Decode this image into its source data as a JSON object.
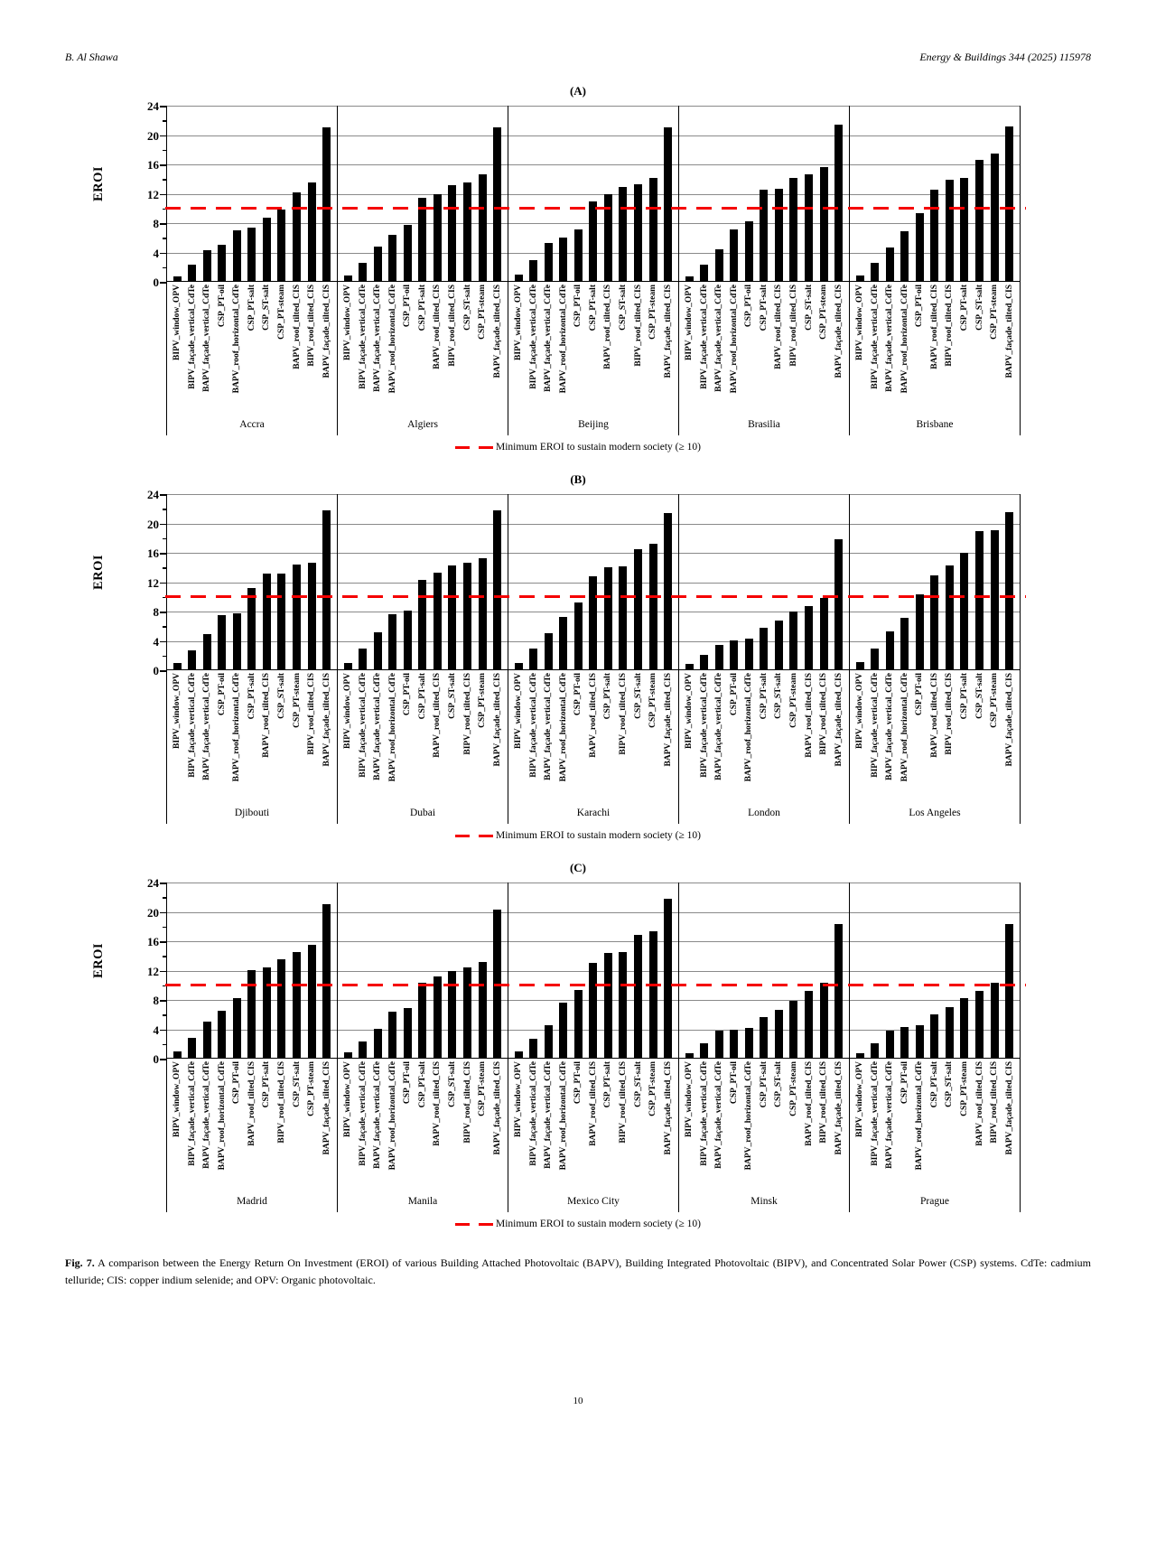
{
  "header": {
    "author": "B. Al Shawa",
    "journal": "Energy & Buildings 344 (2025) 115978"
  },
  "page_number": "10",
  "legend": {
    "label": "Minimum EROI to sustain modern society (≥ 10)",
    "line_color": "#f50000"
  },
  "caption": {
    "label": "Fig. 7.",
    "text": "A comparison between the Energy Return On Investment (EROI) of various Building Attached Photovoltaic (BAPV), Building Integrated Photovoltaic (BIPV), and Concentrated Solar Power (CSP) systems. CdTe: cadmium telluride; CIS: copper indium selenide; and OPV: Organic photovoltaic."
  },
  "chart_data": [
    {
      "type": "bar",
      "panel": "(A)",
      "ylabel": "EROI",
      "ylim": [
        0,
        24
      ],
      "yticks": [
        0,
        4,
        8,
        12,
        16,
        20,
        24
      ],
      "grid": true,
      "threshold": 10,
      "bar_color": "#000000",
      "groups": [
        {
          "city": "Accra",
          "bars": [
            {
              "label": "BIPV_window_OPV",
              "value": 0.8
            },
            {
              "label": "BIPV_façade_vertical_CdTe",
              "value": 2.3
            },
            {
              "label": "BAPV_façade_vertical_CdTe",
              "value": 4.3
            },
            {
              "label": "CSP_PT-oil",
              "value": 5.1
            },
            {
              "label": "BAPV_roof_horizontal_CdTe",
              "value": 7.0
            },
            {
              "label": "CSP_PT-salt",
              "value": 7.4
            },
            {
              "label": "CSP_ST-salt",
              "value": 8.8
            },
            {
              "label": "CSP_PT-steam",
              "value": 9.9
            },
            {
              "label": "BAPV_roof_tilted_CIS",
              "value": 12.2
            },
            {
              "label": "BIPV_roof_tilted_CIS",
              "value": 13.5
            },
            {
              "label": "BAPV_façade_tilted_CIS",
              "value": 21.0
            }
          ]
        },
        {
          "city": "Algiers",
          "bars": [
            {
              "label": "BIPV_window_OPV",
              "value": 0.9
            },
            {
              "label": "BIPV_façade_vertical_CdTe",
              "value": 2.6
            },
            {
              "label": "BAPV_façade_vertical_CdTe",
              "value": 4.8
            },
            {
              "label": "BAPV_roof_horizontal_CdTe",
              "value": 6.4
            },
            {
              "label": "CSP_PT-oil",
              "value": 7.7
            },
            {
              "label": "CSP_PT-salt",
              "value": 11.4
            },
            {
              "label": "BAPV_roof_tilted_CIS",
              "value": 12.0
            },
            {
              "label": "BIPV_roof_tilted_CIS",
              "value": 13.2
            },
            {
              "label": "CSP_ST-salt",
              "value": 13.6
            },
            {
              "label": "CSP_PT-steam",
              "value": 14.7
            },
            {
              "label": "BAPV_façade_tilted_CIS",
              "value": 21.0
            }
          ]
        },
        {
          "city": "Beijing",
          "bars": [
            {
              "label": "BIPV_window_OPV",
              "value": 1.0
            },
            {
              "label": "BIPV_façade_vertical_CdTe",
              "value": 2.9
            },
            {
              "label": "BAPV_façade_vertical_CdTe",
              "value": 5.3
            },
            {
              "label": "BAPV_roof_horizontal_CdTe",
              "value": 6.0
            },
            {
              "label": "CSP_PT-oil",
              "value": 7.2
            },
            {
              "label": "CSP_PT-salt",
              "value": 10.9
            },
            {
              "label": "BAPV_roof_tilted_CIS",
              "value": 11.9
            },
            {
              "label": "CSP_ST-salt",
              "value": 12.9
            },
            {
              "label": "BIPV_roof_tilted_CIS",
              "value": 13.3
            },
            {
              "label": "CSP_PT-steam",
              "value": 14.1
            },
            {
              "label": "BAPV_façade_tilted_CIS",
              "value": 21.0
            }
          ]
        },
        {
          "city": "Brasilia",
          "bars": [
            {
              "label": "BIPV_window_OPV",
              "value": 0.8
            },
            {
              "label": "BIPV_façade_vertical_CdTe",
              "value": 2.3
            },
            {
              "label": "BAPV_façade_vertical_CdTe",
              "value": 4.4
            },
            {
              "label": "BAPV_roof_horizontal_CdTe",
              "value": 7.2
            },
            {
              "label": "CSP_PT-oil",
              "value": 8.2
            },
            {
              "label": "CSP_PT-salt",
              "value": 12.5
            },
            {
              "label": "BAPV_roof_tilted_CIS",
              "value": 12.7
            },
            {
              "label": "BIPV_roof_tilted_CIS",
              "value": 14.1
            },
            {
              "label": "CSP_ST-salt",
              "value": 14.7
            },
            {
              "label": "CSP_PT-steam",
              "value": 15.6
            },
            {
              "label": "BAPV_façade_tilted_CIS",
              "value": 21.4
            }
          ]
        },
        {
          "city": "Brisbane",
          "bars": [
            {
              "label": "BIPV_window_OPV",
              "value": 0.9
            },
            {
              "label": "BIPV_façade_vertical_CdTe",
              "value": 2.6
            },
            {
              "label": "BAPV_façade_vertical_CdTe",
              "value": 4.7
            },
            {
              "label": "BAPV_roof_horizontal_CdTe",
              "value": 6.9
            },
            {
              "label": "CSP_PT-oil",
              "value": 9.3
            },
            {
              "label": "BAPV_roof_tilted_CIS",
              "value": 12.6
            },
            {
              "label": "BIPV_roof_tilted_CIS",
              "value": 13.9
            },
            {
              "label": "CSP_PT-salt",
              "value": 14.1
            },
            {
              "label": "CSP_ST-salt",
              "value": 16.6
            },
            {
              "label": "CSP_PT-steam",
              "value": 17.5
            },
            {
              "label": "BAPV_façade_tilted_CIS",
              "value": 21.2
            }
          ]
        }
      ]
    },
    {
      "type": "bar",
      "panel": "(B)",
      "ylabel": "EROI",
      "ylim": [
        0,
        24
      ],
      "yticks": [
        0,
        4,
        8,
        12,
        16,
        20,
        24
      ],
      "grid": true,
      "threshold": 10,
      "bar_color": "#000000",
      "groups": [
        {
          "city": "Djibouti",
          "bars": [
            {
              "label": "BIPV_window_OPV",
              "value": 1.0
            },
            {
              "label": "BIPV_façade_vertical_CdTe",
              "value": 2.7
            },
            {
              "label": "BAPV_façade_vertical_CdTe",
              "value": 4.9
            },
            {
              "label": "CSP_PT-oil",
              "value": 7.5
            },
            {
              "label": "BAPV_roof_horizontal_CdTe",
              "value": 7.7
            },
            {
              "label": "CSP_PT-salt",
              "value": 11.2
            },
            {
              "label": "BAPV_roof_tilted_CIS",
              "value": 13.2
            },
            {
              "label": "CSP_ST-salt",
              "value": 13.2
            },
            {
              "label": "CSP_PT-steam",
              "value": 14.4
            },
            {
              "label": "BIPV_roof_tilted_CIS",
              "value": 14.6
            },
            {
              "label": "BAPV_façade_tilted_CIS",
              "value": 21.8
            }
          ]
        },
        {
          "city": "Dubai",
          "bars": [
            {
              "label": "BIPV_window_OPV",
              "value": 1.0
            },
            {
              "label": "BIPV_façade_vertical_CdTe",
              "value": 2.9
            },
            {
              "label": "BAPV_façade_vertical_CdTe",
              "value": 5.2
            },
            {
              "label": "BAPV_roof_horizontal_CdTe",
              "value": 7.6
            },
            {
              "label": "CSP_PT-oil",
              "value": 8.1
            },
            {
              "label": "CSP_PT-salt",
              "value": 12.3
            },
            {
              "label": "BAPV_roof_tilted_CIS",
              "value": 13.3
            },
            {
              "label": "CSP_ST-salt",
              "value": 14.3
            },
            {
              "label": "BIPV_roof_tilted_CIS",
              "value": 14.7
            },
            {
              "label": "CSP_PT-steam",
              "value": 15.3
            },
            {
              "label": "BAPV_façade_tilted_CIS",
              "value": 21.8
            }
          ]
        },
        {
          "city": "Karachi",
          "bars": [
            {
              "label": "BIPV_window_OPV",
              "value": 1.0
            },
            {
              "label": "BIPV_façade_vertical_CdTe",
              "value": 3.0
            },
            {
              "label": "BAPV_façade_vertical_CdTe",
              "value": 5.0
            },
            {
              "label": "BAPV_roof_horizontal_CdTe",
              "value": 7.3
            },
            {
              "label": "CSP_PT-oil",
              "value": 9.2
            },
            {
              "label": "BAPV_roof_tilted_CIS",
              "value": 12.8
            },
            {
              "label": "CSP_PT-salt",
              "value": 14.0
            },
            {
              "label": "BIPV_roof_tilted_CIS",
              "value": 14.1
            },
            {
              "label": "CSP_ST-salt",
              "value": 16.5
            },
            {
              "label": "CSP_PT-steam",
              "value": 17.2
            },
            {
              "label": "BAPV_façade_tilted_CIS",
              "value": 21.4
            }
          ]
        },
        {
          "city": "London",
          "bars": [
            {
              "label": "BIPV_window_OPV",
              "value": 0.9
            },
            {
              "label": "BIPV_façade_vertical_CdTe",
              "value": 2.1
            },
            {
              "label": "BAPV_façade_vertical_CdTe",
              "value": 3.5
            },
            {
              "label": "CSP_PT-oil",
              "value": 4.1
            },
            {
              "label": "BAPV_roof_horizontal_CdTe",
              "value": 4.3
            },
            {
              "label": "CSP_PT-salt",
              "value": 5.8
            },
            {
              "label": "CSP_ST-salt",
              "value": 6.8
            },
            {
              "label": "CSP_PT-steam",
              "value": 8.0
            },
            {
              "label": "BAPV_roof_tilted_CIS",
              "value": 8.7
            },
            {
              "label": "BIPV_roof_tilted_CIS",
              "value": 9.9
            },
            {
              "label": "BAPV_façade_tilted_CIS",
              "value": 17.9
            }
          ]
        },
        {
          "city": "Los Angeles",
          "bars": [
            {
              "label": "BIPV_window_OPV",
              "value": 1.1
            },
            {
              "label": "BIPV_façade_vertical_CdTe",
              "value": 2.9
            },
            {
              "label": "BAPV_façade_vertical_CdTe",
              "value": 5.3
            },
            {
              "label": "BAPV_roof_horizontal_CdTe",
              "value": 7.1
            },
            {
              "label": "CSP_PT-oil",
              "value": 10.4
            },
            {
              "label": "BAPV_roof_tilted_CIS",
              "value": 12.9
            },
            {
              "label": "BIPV_roof_tilted_CIS",
              "value": 14.3
            },
            {
              "label": "CSP_PT-salt",
              "value": 16.0
            },
            {
              "label": "CSP_ST-salt",
              "value": 18.9
            },
            {
              "label": "CSP_PT-steam",
              "value": 19.1
            },
            {
              "label": "BAPV_façade_tilted_CIS",
              "value": 21.6
            }
          ]
        }
      ]
    },
    {
      "type": "bar",
      "panel": "(C)",
      "ylabel": "EROI",
      "ylim": [
        0,
        24
      ],
      "yticks": [
        0,
        4,
        8,
        12,
        16,
        20,
        24
      ],
      "grid": true,
      "threshold": 10,
      "bar_color": "#000000",
      "groups": [
        {
          "city": "Madrid",
          "bars": [
            {
              "label": "BIPV_window_OPV",
              "value": 1.0
            },
            {
              "label": "BIPV_façade_vertical_CdTe",
              "value": 2.8
            },
            {
              "label": "BAPV_façade_vertical_CdTe",
              "value": 5.0
            },
            {
              "label": "BAPV_roof_horizontal_CdTe",
              "value": 6.5
            },
            {
              "label": "CSP_PT-oil",
              "value": 8.2
            },
            {
              "label": "BAPV_roof_tilted_CIS",
              "value": 12.1
            },
            {
              "label": "CSP_PT-salt",
              "value": 12.4
            },
            {
              "label": "BIPV_roof_tilted_CIS",
              "value": 13.5
            },
            {
              "label": "CSP_ST-salt",
              "value": 14.5
            },
            {
              "label": "CSP_PT-steam",
              "value": 15.5
            },
            {
              "label": "BAPV_façade_tilted_CIS",
              "value": 21.0
            }
          ]
        },
        {
          "city": "Manila",
          "bars": [
            {
              "label": "BIPV_window_OPV",
              "value": 0.9
            },
            {
              "label": "BIPV_façade_vertical_CdTe",
              "value": 2.3
            },
            {
              "label": "BAPV_façade_vertical_CdTe",
              "value": 4.1
            },
            {
              "label": "BAPV_roof_horizontal_CdTe",
              "value": 6.4
            },
            {
              "label": "CSP_PT-oil",
              "value": 6.9
            },
            {
              "label": "CSP_PT-salt",
              "value": 10.4
            },
            {
              "label": "BAPV_roof_tilted_CIS",
              "value": 11.2
            },
            {
              "label": "CSP_ST-salt",
              "value": 12.0
            },
            {
              "label": "BIPV_roof_tilted_CIS",
              "value": 12.4
            },
            {
              "label": "CSP_PT-steam",
              "value": 13.2
            },
            {
              "label": "BAPV_façade_tilted_CIS",
              "value": 20.3
            }
          ]
        },
        {
          "city": "Mexico City",
          "bars": [
            {
              "label": "BIPV_window_OPV",
              "value": 1.0
            },
            {
              "label": "BIPV_façade_vertical_CdTe",
              "value": 2.7
            },
            {
              "label": "BAPV_façade_vertical_CdTe",
              "value": 4.6
            },
            {
              "label": "BAPV_roof_horizontal_CdTe",
              "value": 7.6
            },
            {
              "label": "CSP_PT-oil",
              "value": 9.3
            },
            {
              "label": "BAPV_roof_tilted_CIS",
              "value": 13.1
            },
            {
              "label": "CSP_PT-salt",
              "value": 14.4
            },
            {
              "label": "BIPV_roof_tilted_CIS",
              "value": 14.5
            },
            {
              "label": "CSP_ST-salt",
              "value": 16.9
            },
            {
              "label": "CSP_PT-steam",
              "value": 17.4
            },
            {
              "label": "BAPV_façade_tilted_CIS",
              "value": 21.8
            }
          ]
        },
        {
          "city": "Minsk",
          "bars": [
            {
              "label": "BIPV_window_OPV",
              "value": 0.8
            },
            {
              "label": "BIPV_façade_vertical_CdTe",
              "value": 2.1
            },
            {
              "label": "BAPV_façade_vertical_CdTe",
              "value": 3.8
            },
            {
              "label": "CSP_PT-oil",
              "value": 4.0
            },
            {
              "label": "BAPV_roof_horizontal_CdTe",
              "value": 4.2
            },
            {
              "label": "CSP_PT-salt",
              "value": 5.7
            },
            {
              "label": "CSP_ST-salt",
              "value": 6.6
            },
            {
              "label": "CSP_PT-steam",
              "value": 7.9
            },
            {
              "label": "BAPV_roof_tilted_CIS",
              "value": 9.2
            },
            {
              "label": "BIPV_roof_tilted_CIS",
              "value": 10.4
            },
            {
              "label": "BAPV_façade_tilted_CIS",
              "value": 18.4
            }
          ]
        },
        {
          "city": "Prague",
          "bars": [
            {
              "label": "BIPV_window_OPV",
              "value": 0.8
            },
            {
              "label": "BIPV_façade_vertical_CdTe",
              "value": 2.1
            },
            {
              "label": "BAPV_façade_vertical_CdTe",
              "value": 3.8
            },
            {
              "label": "CSP_PT-oil",
              "value": 4.3
            },
            {
              "label": "BAPV_roof_horizontal_CdTe",
              "value": 4.6
            },
            {
              "label": "CSP_PT-salt",
              "value": 6.0
            },
            {
              "label": "CSP_ST-salt",
              "value": 7.0
            },
            {
              "label": "CSP_PT-steam",
              "value": 8.3
            },
            {
              "label": "BAPV_roof_tilted_CIS",
              "value": 9.2
            },
            {
              "label": "BIPV_roof_tilted_CIS",
              "value": 10.4
            },
            {
              "label": "BAPV_façade_tilted_CIS",
              "value": 18.4
            }
          ]
        }
      ]
    }
  ]
}
